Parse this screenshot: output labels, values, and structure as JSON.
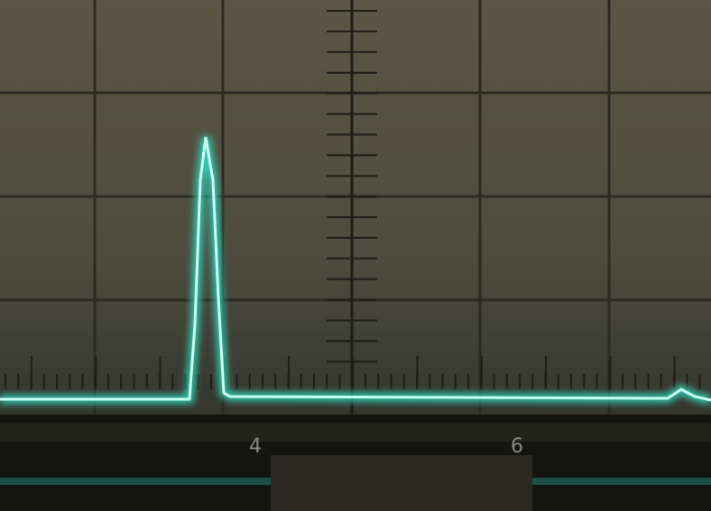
{
  "scale_labels": [
    "4",
    "6"
  ]
}
